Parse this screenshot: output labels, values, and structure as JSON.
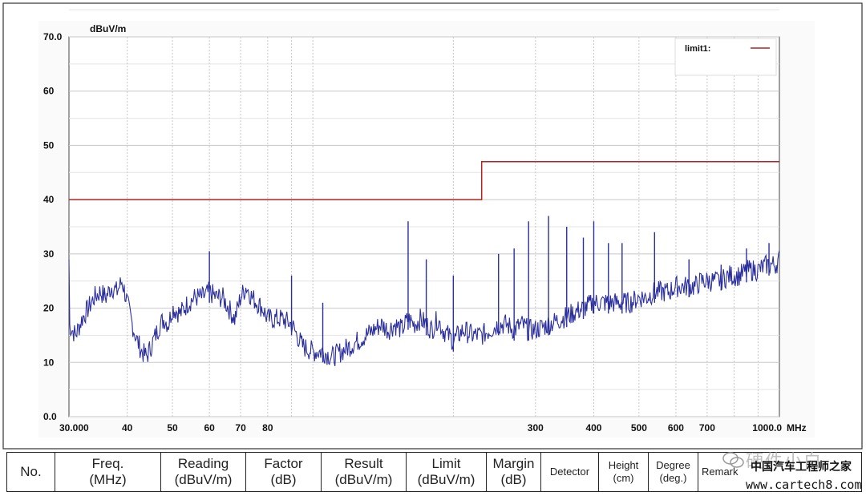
{
  "chart_data": {
    "type": "line",
    "ylabel": "dBuV/m",
    "xlabel": "MHz",
    "x_scale": "log",
    "xlim": [
      30,
      1000
    ],
    "ylim": [
      0,
      70
    ],
    "grid": true,
    "y_ticks": [
      {
        "value": 0,
        "label": "0.0"
      },
      {
        "value": 10,
        "label": "10"
      },
      {
        "value": 20,
        "label": "20"
      },
      {
        "value": 30,
        "label": "30"
      },
      {
        "value": 40,
        "label": "40"
      },
      {
        "value": 50,
        "label": "50"
      },
      {
        "value": 60,
        "label": "60"
      },
      {
        "value": 70,
        "label": "70.0"
      }
    ],
    "x_ticks": [
      {
        "value": 30,
        "label": "30.000"
      },
      {
        "value": 40,
        "label": "40"
      },
      {
        "value": 50,
        "label": "50"
      },
      {
        "value": 60,
        "label": "60"
      },
      {
        "value": 70,
        "label": "70"
      },
      {
        "value": 80,
        "label": "80"
      },
      {
        "value": 300,
        "label": "300"
      },
      {
        "value": 400,
        "label": "400"
      },
      {
        "value": 500,
        "label": "500"
      },
      {
        "value": 600,
        "label": "600"
      },
      {
        "value": 700,
        "label": "700"
      },
      {
        "value": 1000,
        "label": "1000.0"
      }
    ],
    "legend_placement": "top-right",
    "series": [
      {
        "name": "limit1:",
        "color": "#b22222",
        "x": [
          30,
          230,
          230,
          1000
        ],
        "y": [
          40,
          40,
          47,
          47
        ]
      },
      {
        "color": "#2b2f9e",
        "x": [
          30,
          31,
          32,
          33,
          34,
          35,
          36,
          37,
          38,
          39,
          40,
          41,
          42,
          43,
          44,
          45,
          46,
          47,
          48,
          49,
          50,
          52,
          54,
          56,
          58,
          60,
          62,
          64,
          66,
          68,
          70,
          72,
          74,
          76,
          78,
          80,
          83,
          86,
          90,
          95,
          100,
          105,
          110,
          115,
          120,
          125,
          130,
          135,
          140,
          145,
          150,
          155,
          160,
          165,
          170,
          175,
          180,
          185,
          190,
          195,
          200,
          210,
          220,
          230,
          240,
          250,
          260,
          270,
          280,
          290,
          300,
          320,
          340,
          360,
          380,
          400,
          420,
          440,
          460,
          480,
          500,
          520,
          540,
          560,
          580,
          600,
          620,
          640,
          660,
          680,
          700,
          740,
          780,
          820,
          860,
          900,
          940,
          980,
          1000
        ],
        "y": [
          17,
          15,
          18,
          20,
          22,
          23,
          22,
          24,
          23,
          25,
          21,
          17,
          14,
          12,
          11,
          13,
          15,
          17,
          18,
          17,
          20,
          19,
          21,
          22,
          22,
          23,
          22,
          22,
          20,
          18,
          22,
          24,
          22,
          21,
          20,
          18,
          18,
          18,
          17,
          13,
          12,
          12,
          11,
          12,
          13,
          14,
          15,
          16,
          17,
          16,
          17,
          16,
          18,
          17,
          18,
          17,
          16,
          18,
          16,
          15,
          14,
          16,
          15,
          15,
          16,
          17,
          17,
          16,
          17,
          16,
          16,
          17,
          18,
          19,
          20,
          21,
          21,
          21,
          21,
          21,
          22,
          22,
          23,
          23,
          23,
          24,
          24,
          24,
          24,
          25,
          25,
          25,
          26,
          26,
          27,
          27,
          28,
          28,
          29
        ]
      }
    ],
    "peaks": [
      {
        "x": 60,
        "y": 30.5
      },
      {
        "x": 90,
        "y": 26
      },
      {
        "x": 105,
        "y": 21
      },
      {
        "x": 160,
        "y": 36
      },
      {
        "x": 175,
        "y": 29
      },
      {
        "x": 200,
        "y": 26
      },
      {
        "x": 250,
        "y": 30
      },
      {
        "x": 270,
        "y": 31
      },
      {
        "x": 290,
        "y": 36
      },
      {
        "x": 320,
        "y": 37
      },
      {
        "x": 350,
        "y": 35
      },
      {
        "x": 380,
        "y": 33
      },
      {
        "x": 400,
        "y": 36
      },
      {
        "x": 430,
        "y": 32
      },
      {
        "x": 460,
        "y": 32
      },
      {
        "x": 540,
        "y": 34
      },
      {
        "x": 640,
        "y": 29
      },
      {
        "x": 750,
        "y": 28
      },
      {
        "x": 850,
        "y": 31
      },
      {
        "x": 950,
        "y": 32
      }
    ]
  },
  "table": {
    "headers": [
      {
        "line1": "No.",
        "line2": ""
      },
      {
        "line1": "Freq.",
        "line2": "(MHz)"
      },
      {
        "line1": "Reading",
        "line2": "(dBuV/m)"
      },
      {
        "line1": "Factor",
        "line2": "(dB)"
      },
      {
        "line1": "Result",
        "line2": "(dBuV/m)"
      },
      {
        "line1": "Limit",
        "line2": "(dBuV/m)"
      },
      {
        "line1": "Margin",
        "line2": "(dB)"
      },
      {
        "line1": "Detector",
        "line2": ""
      },
      {
        "line1": "Height",
        "line2": "(cm)"
      },
      {
        "line1": "Degree",
        "line2": "(deg.)"
      },
      {
        "line1": "Remark",
        "line2": ""
      }
    ]
  },
  "watermark": {
    "line1": "硬件小白",
    "line2": "中国汽车工程师之家",
    "line3": "www.cartech8.com"
  }
}
